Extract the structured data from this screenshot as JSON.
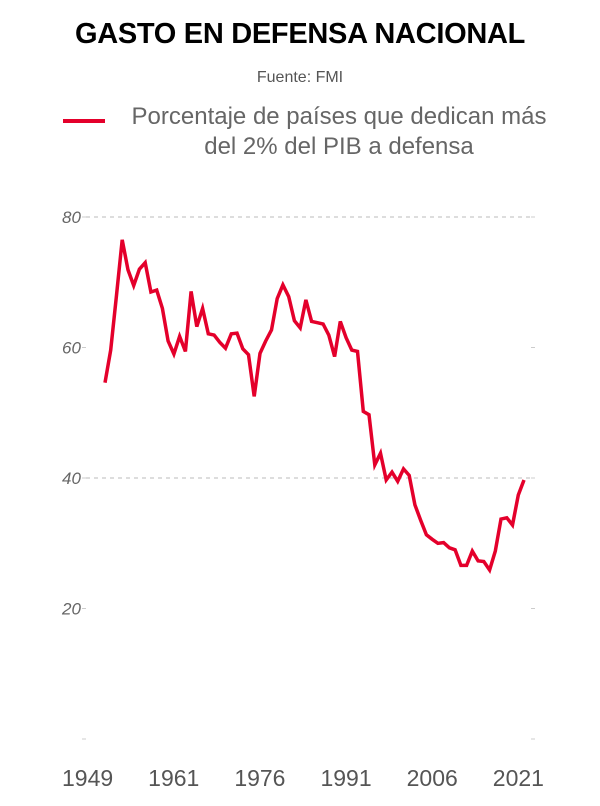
{
  "title": "GASTO EN DEFENSA NACIONAL",
  "source": "Fuente: FMI",
  "chart_data": {
    "type": "line",
    "title": "GASTO EN DEFENSA NACIONAL",
    "xlabel": "",
    "ylabel": "",
    "ylim": [
      0,
      80
    ],
    "xlim": [
      1949,
      2022
    ],
    "y_ticks": [
      "80",
      "60",
      "40",
      "20"
    ],
    "y_tick_values": [
      80,
      60,
      40,
      20
    ],
    "x_ticks": [
      "1949",
      "1961",
      "1976",
      "1991",
      "2006",
      "2021"
    ],
    "grid": "dashed at 40 and 80",
    "legend_placement": "top",
    "colors": {
      "line": "#e4002b"
    },
    "series": [
      {
        "name": "Porcentaje de países que dedican más del 2% del PIB a defensa",
        "x": [
          1949,
          1950,
          1951,
          1952,
          1953,
          1954,
          1955,
          1956,
          1957,
          1958,
          1959,
          1960,
          1961,
          1962,
          1963,
          1964,
          1965,
          1966,
          1967,
          1968,
          1969,
          1970,
          1971,
          1972,
          1973,
          1974,
          1975,
          1976,
          1977,
          1978,
          1979,
          1980,
          1981,
          1982,
          1983,
          1984,
          1985,
          1986,
          1987,
          1988,
          1989,
          1990,
          1991,
          1992,
          1993,
          1994,
          1995,
          1996,
          1997,
          1998,
          1999,
          2000,
          2001,
          2002,
          2003,
          2004,
          2005,
          2006,
          2007,
          2008,
          2009,
          2010,
          2011,
          2012,
          2013,
          2014,
          2015,
          2016,
          2017,
          2018,
          2019,
          2020,
          2021,
          2022
        ],
        "values": [
          54.6,
          59.6,
          68,
          76.5,
          71.9,
          69.5,
          72,
          73,
          68.5,
          68.8,
          66,
          61,
          59,
          61.7,
          59.4,
          68.6,
          63.2,
          66,
          62.1,
          61.9,
          60.8,
          59.9,
          62.1,
          62.2,
          59.8,
          58.9,
          52.5,
          59.1,
          61,
          62.7,
          67.5,
          69.6,
          67.8,
          64.1,
          63,
          67.3,
          64,
          63.8,
          63.6,
          61.9,
          58.6,
          64,
          61.5,
          59.6,
          59.4,
          50.2,
          49.7,
          42,
          43.8,
          39.7,
          40.9,
          39.5,
          41.4,
          40.4,
          35.9,
          33.5,
          31.3,
          30.6,
          30,
          30.1,
          29.3,
          29,
          26.6,
          26.6,
          28.8,
          27.3,
          27.2,
          25.9,
          28.8,
          33.7,
          33.9,
          32.8,
          37.4,
          39.7
        ]
      }
    ]
  }
}
